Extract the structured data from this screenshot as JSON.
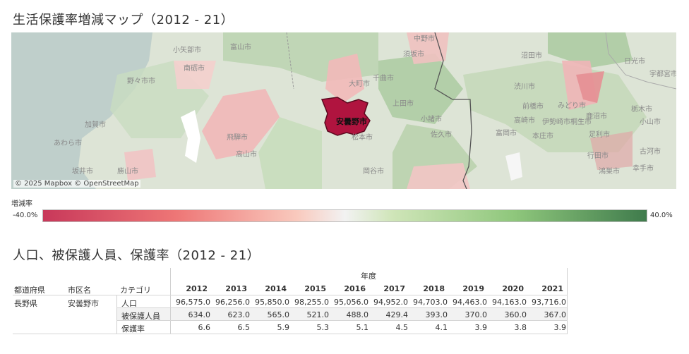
{
  "map_section": {
    "title": "生活保護率増減マップ（2012 - 21）",
    "highlighted_city": "安曇野市",
    "attribution": "© 2025 Mapbox  © OpenStreetMap",
    "labels": {
      "nakanoshi": "中野市",
      "kotaishi": "小矢部市",
      "toyamashi": "富山市",
      "sugakashi": "須坂市",
      "numatashi": "沼田市",
      "nikkoshi": "日光市",
      "utsunomiyashi": "宇都宮市",
      "nantoshi": "南砺市",
      "omachishi": "大町市",
      "chikumashi": "千曲市",
      "nonoichishi": "野々市市",
      "shibukawashi": "渋川市",
      "tochigishi": "栃木市",
      "uedashi": "上田市",
      "maebashishi": "前橋市",
      "midorishi": "みどり市",
      "kanumashi": "鹿沼市",
      "komoroshi": "小諸市",
      "takasakishi": "高崎市",
      "isesakishi": "伊勢崎市",
      "kiryushi": "桐生市",
      "oyamashi": "小山市",
      "kagashi": "加賀市",
      "hidashi": "飛騨市",
      "matsumotoshi": "松本市",
      "sakushi": "佐久市",
      "tomiokashi": "富岡市",
      "honjoshi": "本庄市",
      "ashikagashi": "足利市",
      "awarashi": "あわら市",
      "takayamashi": "高山市",
      "gyodashi": "行田市",
      "kogashi": "古河市",
      "sakaishi": "坂井市",
      "katsuyamashi": "勝山市",
      "okayashi": "岡谷市",
      "kounosushi": "鴻巣市",
      "kukishi": "幸手市"
    }
  },
  "legend": {
    "title": "増減率",
    "min": "-40.0%",
    "max": "40.0%"
  },
  "table_section": {
    "title": "人口、被保護人員、保護率（2012 - 21）",
    "year_header": "年度",
    "columns": [
      "都道府県",
      "市区名",
      "カテゴリ"
    ],
    "years": [
      "2012",
      "2013",
      "2014",
      "2015",
      "2016",
      "2017",
      "2018",
      "2019",
      "2020",
      "2021"
    ],
    "prefecture": "長野県",
    "city": "安曇野市",
    "rows": [
      {
        "category": "人口",
        "values": [
          "96,575.0",
          "96,256.0",
          "95,850.0",
          "98,255.0",
          "95,056.0",
          "94,952.0",
          "94,703.0",
          "94,463.0",
          "94,163.0",
          "93,716.0"
        ]
      },
      {
        "category": "被保護人員",
        "values": [
          "634.0",
          "623.0",
          "565.0",
          "521.0",
          "488.0",
          "429.4",
          "393.0",
          "370.0",
          "360.0",
          "367.0"
        ]
      },
      {
        "category": "保護率",
        "values": [
          "6.6",
          "6.5",
          "5.9",
          "5.3",
          "5.1",
          "4.5",
          "4.1",
          "3.9",
          "3.8",
          "3.9"
        ]
      }
    ]
  }
}
